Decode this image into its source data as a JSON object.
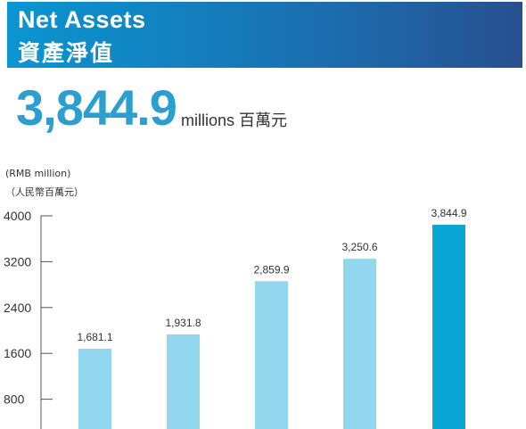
{
  "banner": {
    "title_en": "Net Assets",
    "title_zh": "資產淨值"
  },
  "headline": {
    "value": "3,844.9",
    "unit": "millions 百萬元"
  },
  "colors": {
    "banner_start": "#0a96d2",
    "banner_end": "#27508f",
    "headline": "#2a9fd0",
    "bar_light": "#93d7ee",
    "bar_dark": "#0aa7d6"
  },
  "chart_data": {
    "type": "bar",
    "ylabel": "(RMB million)",
    "ylabel_zh": "（人民幣百萬元）",
    "yticks": [
      800,
      1600,
      2400,
      3200,
      4000
    ],
    "ylim": [
      0,
      4000
    ],
    "values": [
      1681.1,
      1931.8,
      2859.9,
      3250.6,
      3844.9
    ],
    "value_labels": [
      "1,681.1",
      "1,931.8",
      "2,859.9",
      "3,250.6",
      "3,844.9"
    ],
    "highlight_index": 4,
    "grid": false
  }
}
